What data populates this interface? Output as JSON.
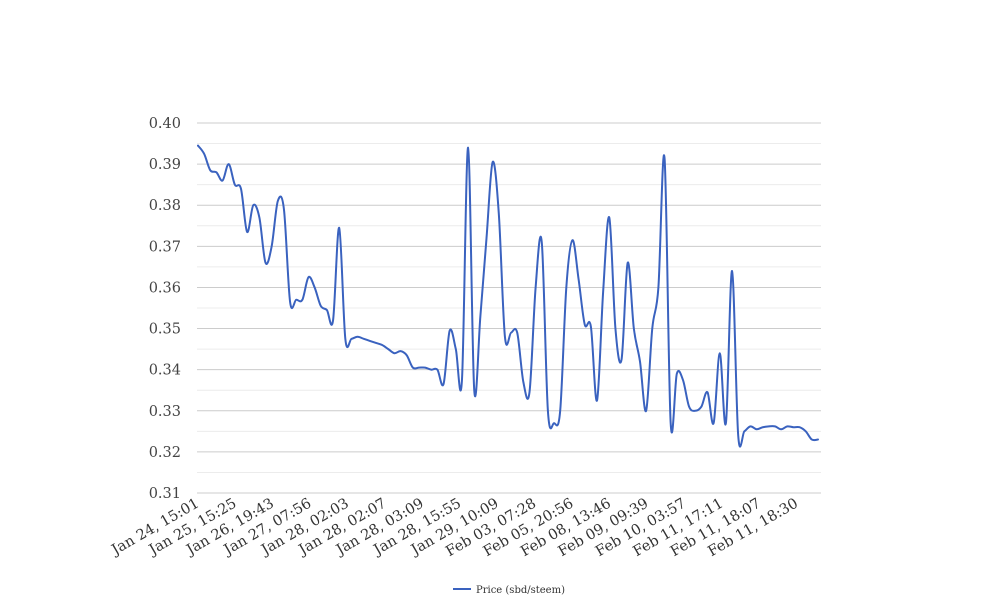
{
  "chart_data": {
    "type": "line",
    "title": "",
    "xlabel": "",
    "ylabel": "",
    "ylim": [
      0.31,
      0.4
    ],
    "yticks": [
      "0.40",
      "0.39",
      "0.38",
      "0.37",
      "0.36",
      "0.35",
      "0.34",
      "0.33",
      "0.32",
      "0.31"
    ],
    "x_tick_labels": [
      "Jan 24, 15:01",
      "Jan 25, 15:25",
      "Jan 26, 19:43",
      "Jan 27, 07:56",
      "Jan 28, 02:03",
      "Jan 28, 02:07",
      "Jan 28, 03:09",
      "Jan 28, 15:55",
      "Jan 29, 10:09",
      "Feb 03, 07:28",
      "Feb 05, 20:56",
      "Feb 08, 13:46",
      "Feb 09, 09:39",
      "Feb 10, 03:57",
      "Feb 11, 17:11",
      "Feb 11, 18:07",
      "Feb 11, 18:30"
    ],
    "grid": true,
    "legend_position": "bottom-center",
    "line_color": "#3a62bf",
    "series": [
      {
        "name": "Price (sbd/steem)",
        "values": [
          0.3945,
          0.3925,
          0.3885,
          0.388,
          0.386,
          0.39,
          0.385,
          0.384,
          0.3735,
          0.38,
          0.377,
          0.366,
          0.37,
          0.381,
          0.379,
          0.3565,
          0.357,
          0.357,
          0.3625,
          0.36,
          0.3555,
          0.3545,
          0.352,
          0.3745,
          0.3475,
          0.3475,
          0.348,
          0.3475,
          0.347,
          0.3465,
          0.346,
          0.345,
          0.344,
          0.3445,
          0.3435,
          0.3405,
          0.3405,
          0.3405,
          0.34,
          0.34,
          0.3365,
          0.3495,
          0.345,
          0.3375,
          0.394,
          0.335,
          0.353,
          0.372,
          0.3905,
          0.378,
          0.348,
          0.349,
          0.349,
          0.337,
          0.3345,
          0.36,
          0.371,
          0.33,
          0.327,
          0.33,
          0.36,
          0.3715,
          0.362,
          0.351,
          0.3505,
          0.3325,
          0.359,
          0.377,
          0.35,
          0.3425,
          0.366,
          0.35,
          0.342,
          0.33,
          0.35,
          0.36,
          0.3915,
          0.327,
          0.339,
          0.3375,
          0.331,
          0.33,
          0.331,
          0.3345,
          0.327,
          0.344,
          0.327,
          0.364,
          0.324,
          0.325,
          0.3262,
          0.3255,
          0.326,
          0.3262,
          0.3262,
          0.3255,
          0.3262,
          0.326,
          0.326,
          0.325,
          0.323,
          0.323
        ]
      }
    ]
  }
}
